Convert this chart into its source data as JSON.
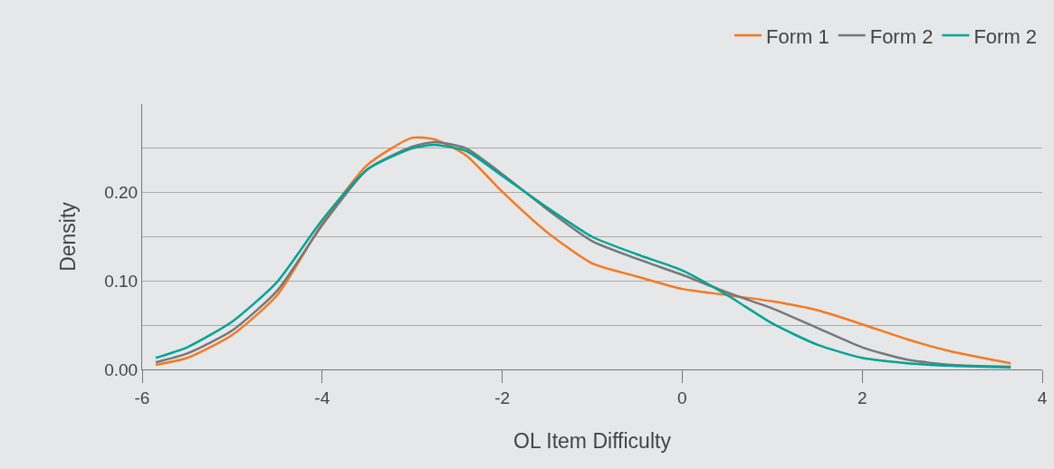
{
  "chart_data": {
    "type": "line",
    "xlabel": "OL Item Difficulty",
    "ylabel": "Density",
    "xlim": [
      -6,
      4
    ],
    "xticks": [
      -6,
      -4,
      -2,
      0,
      2,
      4
    ],
    "ylim": [
      0,
      0.3
    ],
    "yticks": [
      {
        "value": 0,
        "label": "0.00"
      },
      {
        "value": 0.05,
        "label": null
      },
      {
        "value": 0.1,
        "label": "0.10"
      },
      {
        "value": 0.15,
        "label": null
      },
      {
        "value": 0.2,
        "label": "0.20"
      },
      {
        "value": 0.25,
        "label": null
      }
    ],
    "grid": "y",
    "legend": "top right",
    "marker": "none",
    "line_style": "solid",
    "x": [
      -5.85,
      -5.5,
      -5,
      -4.5,
      -4,
      -3.5,
      -3,
      -2.75,
      -2.4,
      -2,
      -1.5,
      -1,
      -0.5,
      0,
      0.5,
      1,
      1.5,
      2,
      2.5,
      3,
      3.65
    ],
    "series": [
      {
        "name": "Form 1",
        "color": "#f47920",
        "values": [
          0.005,
          0.013,
          0.039,
          0.084,
          0.165,
          0.231,
          0.262,
          0.26,
          0.242,
          0.201,
          0.155,
          0.12,
          0.105,
          0.091,
          0.084,
          0.077,
          0.067,
          0.051,
          0.034,
          0.02,
          0.007
        ]
      },
      {
        "name": "Form 2",
        "color": "#77777b",
        "values": [
          0.008,
          0.018,
          0.044,
          0.089,
          0.163,
          0.226,
          0.252,
          0.257,
          0.25,
          0.221,
          0.181,
          0.145,
          0.125,
          0.107,
          0.087,
          0.069,
          0.047,
          0.025,
          0.011,
          0.005,
          0.003
        ]
      },
      {
        "name": "Form 2",
        "color": "#00a396",
        "values": [
          0.013,
          0.025,
          0.054,
          0.099,
          0.169,
          0.226,
          0.25,
          0.254,
          0.247,
          0.219,
          0.183,
          0.15,
          0.13,
          0.112,
          0.084,
          0.052,
          0.028,
          0.013,
          0.007,
          0.004,
          0.002
        ]
      }
    ]
  }
}
